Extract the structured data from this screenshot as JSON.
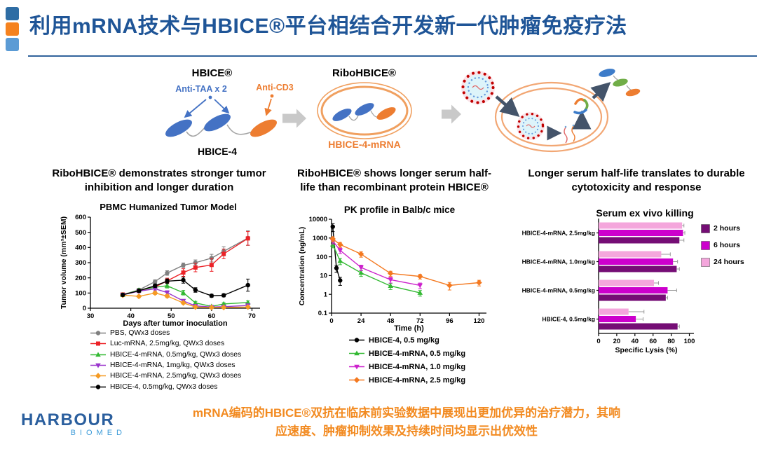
{
  "slide_title": "利用mRNA技术与HBICE®平台相结合开发新一代肿瘤免疫疗法",
  "header": {
    "accent_squares": [
      "#2E6DA4",
      "#F5821F",
      "#5B9BD5"
    ],
    "title_color": "#1F5597"
  },
  "diagram": {
    "hbice_title": "HBICE®",
    "anti_taa_label": "Anti-TAA x 2",
    "anti_cd3_label": "Anti-CD3",
    "hbice_caption": "HBICE-4",
    "ribohbice_title": "RiboHBICE®",
    "ribohbice_caption": "HBICE-4-mRNA",
    "colors": {
      "antibody_blue": "#4472C4",
      "antibody_orange": "#ED7D31",
      "antibody_green": "#70AD47",
      "block_arrow_gray": "#C9C9C9",
      "dark_arrow": "#44546A",
      "cell_membrane_orange": "#F2A774",
      "lnp_dot_red": "#C00000",
      "lnp_fill_cyan": "#DDF4FA"
    }
  },
  "panels": [
    {
      "heading": "RiboHBICE® demonstrates stronger tumor inhibition and longer duration"
    },
    {
      "heading": "RiboHBICE® shows longer serum half-life than recombinant protein HBICE®"
    },
    {
      "heading": "Longer serum half-life translates to durable cytotoxicity and response"
    }
  ],
  "chart_data": [
    {
      "type": "line",
      "title": "PBMC Humanized Tumor Model",
      "xlabel": "Days after tumor inoculation",
      "ylabel": "Tumor volume (mm³±SEM)",
      "xlim": [
        30,
        72
      ],
      "ylim": [
        0,
        600
      ],
      "xticks": [
        30,
        40,
        50,
        60,
        70
      ],
      "yticks": [
        0,
        100,
        200,
        300,
        400,
        500,
        600
      ],
      "grid": false,
      "legend_position": "bottom",
      "x": [
        38,
        42,
        46,
        49,
        53,
        56,
        60,
        63,
        69
      ],
      "series": [
        {
          "name": "PBS, QWx3 doses",
          "color": "#808080",
          "marker": "circle",
          "values": [
            90,
            120,
            175,
            232,
            283,
            300,
            330,
            375,
            462
          ],
          "err": [
            8,
            10,
            12,
            15,
            15,
            18,
            25,
            30,
            48
          ]
        },
        {
          "name": "Luc-mRNA, 2.5mg/kg, QWx3 doses",
          "color": "#EC2227",
          "marker": "square",
          "values": [
            90,
            115,
            140,
            180,
            235,
            268,
            285,
            358,
            460
          ],
          "err": [
            8,
            10,
            12,
            18,
            25,
            28,
            42,
            32,
            45
          ]
        },
        {
          "name": "HBICE-4-mRNA, 0.5mg/kg, QWx3 doses",
          "color": "#33B933",
          "marker": "triangle",
          "values": [
            88,
            118,
            138,
            148,
            102,
            35,
            12,
            28,
            38
          ],
          "err": [
            8,
            10,
            12,
            15,
            15,
            10,
            5,
            8,
            10
          ]
        },
        {
          "name": "HBICE-4-mRNA, 1mg/kg, QWx3 doses",
          "color": "#9933CC",
          "marker": "triangle-down",
          "values": [
            88,
            112,
            128,
            103,
            48,
            15,
            8,
            10,
            18
          ],
          "err": [
            8,
            10,
            12,
            12,
            10,
            5,
            4,
            4,
            6
          ]
        },
        {
          "name": "HBICE-4-mRNA, 2.5mg/kg, QWx3 doses",
          "color": "#F59A23",
          "marker": "diamond",
          "values": [
            86,
            78,
            100,
            80,
            35,
            8,
            5,
            5,
            8
          ],
          "err": [
            8,
            8,
            10,
            10,
            8,
            3,
            2,
            2,
            3
          ]
        },
        {
          "name": "HBICE-4, 0.5mg/kg, QWx3 doses",
          "color": "#000000",
          "marker": "circle",
          "values": [
            88,
            115,
            148,
            178,
            185,
            120,
            82,
            85,
            152
          ],
          "err": [
            8,
            10,
            12,
            15,
            20,
            15,
            10,
            10,
            40
          ]
        }
      ]
    },
    {
      "type": "line",
      "title": "PK profile in Balb/c mice",
      "xlabel": "Time (h)",
      "ylabel": "Concentration (ng/mL)",
      "yscale": "log",
      "xlim": [
        0,
        126
      ],
      "ylim": [
        0.1,
        10000
      ],
      "xticks": [
        0,
        24,
        48,
        72,
        96,
        120
      ],
      "yticks": [
        0.1,
        1,
        10,
        100,
        1000,
        10000
      ],
      "grid": false,
      "legend_position": "bottom",
      "series": [
        {
          "name": "HBICE-4, 0.5 mg/kg",
          "color": "#000000",
          "marker": "circle",
          "x": [
            1,
            4,
            7
          ],
          "values": [
            4000,
            25,
            5.5
          ],
          "err": [
            1800,
            10,
            2.5
          ]
        },
        {
          "name": "HBICE-4-mRNA, 0.5 mg/kg",
          "color": "#33B933",
          "marker": "triangle",
          "x": [
            1,
            7,
            24,
            48,
            72
          ],
          "values": [
            450,
            60,
            14,
            2.8,
            1.2
          ],
          "err": [
            150,
            22,
            5,
            1,
            0.4
          ]
        },
        {
          "name": "HBICE-4-mRNA, 1.0 mg/kg",
          "color": "#CC22CC",
          "marker": "triangle-down",
          "x": [
            1,
            7,
            24,
            48,
            72
          ],
          "values": [
            700,
            220,
            27,
            6,
            3
          ],
          "err": [
            220,
            70,
            9,
            2,
            1
          ]
        },
        {
          "name": "HBICE-4-mRNA, 2.5 mg/kg",
          "color": "#F47920",
          "marker": "diamond",
          "x": [
            1,
            7,
            24,
            48,
            72,
            96,
            120
          ],
          "values": [
            900,
            450,
            140,
            13,
            9,
            3,
            4.2
          ],
          "err": [
            260,
            130,
            45,
            4,
            2.5,
            1.3,
            1.4
          ]
        }
      ]
    },
    {
      "type": "bar-horizontal",
      "title": "Serum ex vivo killing",
      "xlabel": "Specific Lysis (%)",
      "xlim": [
        0,
        105
      ],
      "xticks": [
        0,
        20,
        40,
        60,
        80,
        100
      ],
      "grid": false,
      "legend_position": "right",
      "categories": [
        "HBICE-4-mRNA, 2.5mg/kg",
        "HBICE-4-mRNA, 1.0mg/kg",
        "HBICE-4-mRNA, 0.5mg/kg",
        "HBICE-4, 0.5mg/kg"
      ],
      "series": [
        {
          "name": "2 hours",
          "color": "#750D75",
          "values": [
            89,
            86,
            74,
            87
          ],
          "err": [
            5,
            3,
            2,
            2
          ]
        },
        {
          "name": "6 hours",
          "color": "#CC00CC",
          "values": [
            93,
            82,
            76,
            41
          ],
          "err": [
            2,
            5,
            10,
            8
          ]
        },
        {
          "name": "24 hours",
          "color": "#F4A6DC",
          "values": [
            92,
            69,
            61,
            33
          ],
          "err": [
            2,
            10,
            5,
            17
          ]
        }
      ]
    }
  ],
  "footer": {
    "logo_line1": "HARBOUR",
    "logo_line2": "BIOMED",
    "message_line1": "mRNA编码的HBICE®双抗在临床前实验数据中展现出更加优异的治疗潜力，其响",
    "message_line2": "应速度、肿瘤抑制效果及持续时间均显示出优效性",
    "message_color": "#F28A20"
  }
}
